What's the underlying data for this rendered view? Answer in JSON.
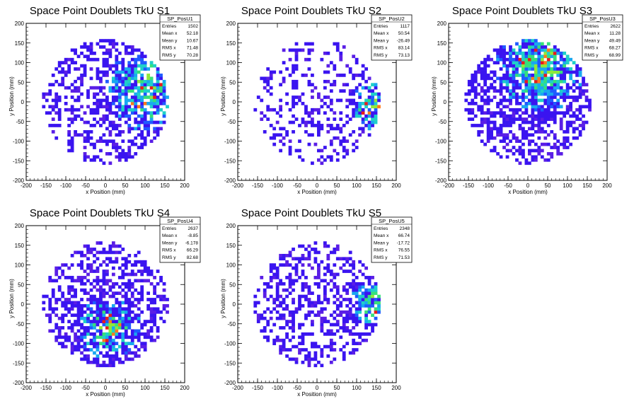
{
  "chart_data": [
    {
      "type": "heatmap",
      "title": "Space Point Doublets TkU S1",
      "xlabel": "x Position (mm)",
      "ylabel": "y Position (mm)",
      "xlim": [
        -200,
        200
      ],
      "ylim": [
        -200,
        200
      ],
      "xticks": [
        -200,
        -150,
        -100,
        -50,
        0,
        50,
        100,
        150,
        200
      ],
      "yticks": [
        -200,
        -150,
        -100,
        -50,
        0,
        50,
        100,
        150,
        200
      ],
      "stats": {
        "name": "SP_PosU1",
        "rows": [
          {
            "label": "Entries",
            "value": "1502"
          },
          {
            "label": "Mean x",
            "value": "52.18"
          },
          {
            "label": "Mean y",
            "value": "10.67"
          },
          {
            "label": "RMS x",
            "value": "71.48"
          },
          {
            "label": "RMS y",
            "value": "70.28"
          }
        ]
      },
      "profile": {
        "cx": 100,
        "cy": 30,
        "base": 0.55,
        "hot": 0.9,
        "spread": 70
      }
    },
    {
      "type": "heatmap",
      "title": "Space Point Doublets TkU S2",
      "xlabel": "x Position (mm)",
      "ylabel": "y Position (mm)",
      "xlim": [
        -200,
        200
      ],
      "ylim": [
        -200,
        200
      ],
      "xticks": [
        -200,
        -150,
        -100,
        -50,
        0,
        50,
        100,
        150,
        200
      ],
      "yticks": [
        -200,
        -150,
        -100,
        -50,
        0,
        50,
        100,
        150,
        200
      ],
      "stats": {
        "name": "SP_PosU2",
        "rows": [
          {
            "label": "Entries",
            "value": "1117"
          },
          {
            "label": "Mean x",
            "value": "50.54"
          },
          {
            "label": "Mean y",
            "value": "-26.49"
          },
          {
            "label": "RMS x",
            "value": "83.14"
          },
          {
            "label": "RMS y",
            "value": "73.13"
          }
        ]
      },
      "profile": {
        "cx": 140,
        "cy": -10,
        "base": 0.42,
        "hot": 0.8,
        "spread": 45
      }
    },
    {
      "type": "heatmap",
      "title": "Space Point Doublets TkU S3",
      "xlabel": "x Position (mm)",
      "ylabel": "y Position (mm)",
      "xlim": [
        -200,
        200
      ],
      "ylim": [
        -200,
        200
      ],
      "xticks": [
        -200,
        -150,
        -100,
        -50,
        0,
        50,
        100,
        150,
        200
      ],
      "yticks": [
        -200,
        -150,
        -100,
        -50,
        0,
        50,
        100,
        150,
        200
      ],
      "stats": {
        "name": "SP_PosU3",
        "rows": [
          {
            "label": "Entries",
            "value": "2622"
          },
          {
            "label": "Mean x",
            "value": "11.28"
          },
          {
            "label": "Mean y",
            "value": "49.49"
          },
          {
            "label": "RMS x",
            "value": "68.27"
          },
          {
            "label": "RMS y",
            "value": "68.99"
          }
        ]
      },
      "profile": {
        "cx": 30,
        "cy": 90,
        "base": 0.78,
        "hot": 0.95,
        "spread": 80
      }
    },
    {
      "type": "heatmap",
      "title": "Space Point Doublets TkU S4",
      "xlabel": "x Position (mm)",
      "ylabel": "y Position (mm)",
      "xlim": [
        -200,
        200
      ],
      "ylim": [
        -200,
        200
      ],
      "xticks": [
        -200,
        -150,
        -100,
        -50,
        0,
        50,
        100,
        150,
        200
      ],
      "yticks": [
        -200,
        -150,
        -100,
        -50,
        0,
        50,
        100,
        150,
        200
      ],
      "stats": {
        "name": "SP_PosU4",
        "rows": [
          {
            "label": "Entries",
            "value": "2637"
          },
          {
            "label": "Mean x",
            "value": "-8.85"
          },
          {
            "label": "Mean y",
            "value": "-6.178"
          },
          {
            "label": "RMS x",
            "value": "66.29"
          },
          {
            "label": "RMS y",
            "value": "82.68"
          }
        ]
      },
      "profile": {
        "cx": 10,
        "cy": -60,
        "base": 0.72,
        "hot": 0.75,
        "spread": 55
      }
    },
    {
      "type": "heatmap",
      "title": "Space Point Doublets TkU S5",
      "xlabel": "x Position (mm)",
      "ylabel": "y Position (mm)",
      "xlim": [
        -200,
        200
      ],
      "ylim": [
        -200,
        200
      ],
      "xticks": [
        -200,
        -150,
        -100,
        -50,
        0,
        50,
        100,
        150,
        200
      ],
      "yticks": [
        -200,
        -150,
        -100,
        -50,
        0,
        50,
        100,
        150,
        200
      ],
      "stats": {
        "name": "SP_PosU5",
        "rows": [
          {
            "label": "Entries",
            "value": "2348"
          },
          {
            "label": "Mean x",
            "value": "66.74"
          },
          {
            "label": "Mean y",
            "value": "-17.72"
          },
          {
            "label": "RMS x",
            "value": "76.55"
          },
          {
            "label": "RMS y",
            "value": "71.53"
          }
        ]
      },
      "profile": {
        "cx": 140,
        "cy": 0,
        "base": 0.66,
        "hot": 0.85,
        "spread": 40
      }
    }
  ],
  "colors": {
    "palette": [
      "#3a14f0",
      "#5a1ee6",
      "#1f5bff",
      "#19a8f0",
      "#1fd0c8",
      "#36e07a",
      "#8fe83a",
      "#e8e832",
      "#ff7a1c",
      "#e81c1c"
    ],
    "frame": "#000000",
    "background": "#ffffff"
  }
}
